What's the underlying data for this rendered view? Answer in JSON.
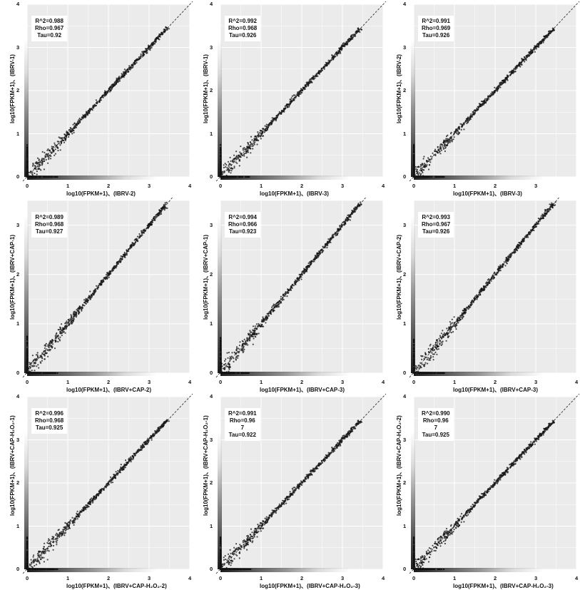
{
  "chart_data": [
    {
      "type": "scatter",
      "xlabel": "log10(FPKM+1)、(IBRV-2)",
      "ylabel": "log10(FPKM+1)、(IBRV-1)",
      "stats": "R^2=0.988\nRho=0.967\nTau=0.92",
      "xlim": [
        0,
        4
      ],
      "ylim": [
        0,
        4
      ],
      "x_ticks": [
        "0",
        "1",
        "2",
        "3",
        "4"
      ],
      "y_ticks": [
        "0",
        "1",
        "2",
        "3",
        "4"
      ],
      "reference_line": "y = x (dashed)",
      "grid": true
    },
    {
      "type": "scatter",
      "xlabel": "log10(FPKM+1)、(IBRV-3)",
      "ylabel": "log10(FPKM+1)、(IBRV-1)",
      "stats": "R^2=0.992\nRho=0.968\nTau=0.926",
      "xlim": [
        0,
        4
      ],
      "ylim": [
        0,
        4
      ],
      "x_ticks": [
        "0",
        "1",
        "2",
        "3",
        "4"
      ],
      "y_ticks": [
        "0",
        "1",
        "2",
        "3",
        "4"
      ],
      "reference_line": "y = x (dashed)",
      "grid": true
    },
    {
      "type": "scatter",
      "xlabel": "log10(FPKM+1)、(IBRV-3)",
      "ylabel": "log10(FPKM+1)、(IBRV-2)",
      "stats": "R^2=0.991\nRho=0.969\nTau=0.926",
      "xlim": [
        0,
        4
      ],
      "ylim": [
        0,
        4
      ],
      "x_ticks": [
        "0",
        "1",
        "2",
        "3"
      ],
      "y_ticks": [
        "0",
        "1",
        "2",
        "3",
        "4"
      ],
      "reference_line": "y = x (dashed)",
      "grid": true
    },
    {
      "type": "scatter",
      "xlabel": "log10(FPKM+1)、(IBRV+CAP-2)",
      "ylabel": "log10(FPKM+1)、(IBRV+CAP-1)",
      "stats": "R^2=0.989\nRho=0.968\nTau=0.927",
      "xlim": [
        0,
        4
      ],
      "ylim": [
        0,
        3.5
      ],
      "x_ticks": [
        "0",
        "1",
        "2",
        "3",
        "4"
      ],
      "y_ticks": [
        "0",
        "1",
        "2",
        "3"
      ],
      "reference_line": "y = x (dashed)",
      "grid": true
    },
    {
      "type": "scatter",
      "xlabel": "log10(FPKM+1)、(IBRV+CAP-3)",
      "ylabel": "log10(FPKM+1)、(IBRV+CAP-1)",
      "stats": "R^2=0.994\nRho=0.966\nTau=0.923",
      "xlim": [
        0,
        4
      ],
      "ylim": [
        0,
        3.5
      ],
      "x_ticks": [
        "0",
        "1",
        "2",
        "3",
        "4"
      ],
      "y_ticks": [
        "0",
        "1",
        "2",
        "3"
      ],
      "reference_line": "y = x (dashed)",
      "grid": true
    },
    {
      "type": "scatter",
      "xlabel": "log10(FPKM+1)、(IBRV+CAP-3)",
      "ylabel": "log10(FPKM+1)、(IBRV+CAP-2)",
      "stats": "R^2=0.993\nRho=0.967\nTau=0.926",
      "xlim": [
        0,
        4
      ],
      "ylim": [
        0,
        3.5
      ],
      "x_ticks": [
        "0",
        "1",
        "2",
        "3",
        "4"
      ],
      "y_ticks": [
        "0",
        "1",
        "2",
        "3"
      ],
      "reference_line": "y = x (dashed)",
      "grid": true
    },
    {
      "type": "scatter",
      "xlabel": "log10(FPKM+1)、(IBRV+CAP-H₂O₂-2)",
      "ylabel": "log10(FPKM+1)、(IBRV+CAP-H₂O₂-1)",
      "stats": "R^2=0.996\nRho=0.968\nTau=0.925",
      "xlim": [
        0,
        4
      ],
      "ylim": [
        0,
        4
      ],
      "x_ticks": [
        "0",
        "1",
        "2",
        "3",
        "4"
      ],
      "y_ticks": [
        "0",
        "1",
        "2",
        "3",
        "4"
      ],
      "reference_line": "y = x (dashed)",
      "grid": true
    },
    {
      "type": "scatter",
      "xlabel": "log10(FPKM+1)、(IBRV+CAP-H₂O₂-3)",
      "ylabel": "log10(FPKM+1)、(IBRV+CAP-H₂O₂-1)",
      "stats": "R^2=0.991\nRho=0.96\n7\nTau=0.922",
      "xlim": [
        0,
        4
      ],
      "ylim": [
        0,
        4
      ],
      "x_ticks": [
        "0",
        "1",
        "2",
        "3",
        "4"
      ],
      "y_ticks": [
        "0",
        "1",
        "2",
        "3",
        "4"
      ],
      "reference_line": "y = x (dashed)",
      "grid": true
    },
    {
      "type": "scatter",
      "xlabel": "log10(FPKM+1)、(IBRV+CAP-H₂O₂-3)",
      "ylabel": "log10(FPKM+1)、(IBRV+CAP-H₂O₂-2)",
      "stats": "R^2=0.990\nRho=0.96\n7\nTau=0.925",
      "xlim": [
        0,
        4
      ],
      "ylim": [
        0,
        4
      ],
      "x_ticks": [
        "0",
        "1",
        "2",
        "3",
        "4"
      ],
      "y_ticks": [
        "0",
        "1",
        "2",
        "3",
        "4"
      ],
      "reference_line": "y = x (dashed)",
      "grid": true
    }
  ],
  "colors": {
    "panel_bg": "#ebebeb",
    "grid": "#ffffff",
    "points": "#111111",
    "reference_line": "#333333"
  }
}
